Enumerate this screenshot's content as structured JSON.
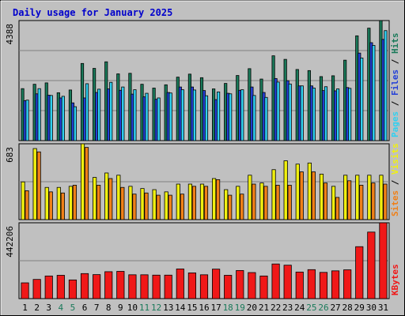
{
  "chart_data": {
    "type": "bar",
    "title": "Daily usage for January 2025",
    "days": [
      "1",
      "2",
      "3",
      "4",
      "5",
      "6",
      "7",
      "8",
      "9",
      "10",
      "11",
      "12",
      "13",
      "14",
      "15",
      "16",
      "17",
      "18",
      "19",
      "20",
      "21",
      "22",
      "23",
      "24",
      "25",
      "26",
      "27",
      "28",
      "29",
      "30",
      "31"
    ],
    "weekend_days": [
      "4",
      "5",
      "11",
      "12",
      "18",
      "19",
      "25",
      "26"
    ],
    "panels": [
      {
        "key": "hits",
        "ymax": 4388,
        "max_label": "4388",
        "labels": [
          "Pages",
          "Files",
          "Hits"
        ],
        "series": [
          {
            "name": "Hits",
            "color": "#1a7a5a",
            "values": [
              1900,
              2060,
              2110,
              1750,
              1850,
              2820,
              2640,
              2880,
              2440,
              2460,
              2060,
              1920,
              2040,
              2320,
              2430,
              2300,
              1890,
              2090,
              2380,
              2630,
              2250,
              3100,
              2970,
              2600,
              2560,
              2340,
              2370,
              2940,
              3830,
              4110,
              4388
            ]
          },
          {
            "name": "Files",
            "color": "#2440d8",
            "values": [
              1460,
              1710,
              1660,
              1560,
              1380,
              1560,
              1760,
              1890,
              1840,
              1700,
              1600,
              1510,
              1760,
              1960,
              1960,
              1830,
              1500,
              1730,
              1840,
              1960,
              1760,
              2270,
              2190,
              2000,
              2000,
              1830,
              1820,
              1940,
              3200,
              3580,
              3700
            ]
          },
          {
            "name": "Pages",
            "color": "#30d0f0",
            "values": [
              1480,
              1900,
              1650,
              1620,
              1240,
              2080,
              1880,
              2130,
              1960,
              1860,
              1730,
              1560,
              1740,
              1860,
              1850,
              1640,
              1780,
              1710,
              1860,
              1650,
              1580,
              2140,
              2070,
              2000,
              1920,
              1970,
              1890,
              1910,
              3020,
              3480,
              4020
            ]
          }
        ]
      },
      {
        "key": "visits",
        "ymax": 683,
        "max_label": "683",
        "labels": [
          "Sites",
          "Visits"
        ],
        "series": [
          {
            "name": "Visits",
            "color": "#f0f010",
            "values": [
              340,
              640,
              290,
              290,
              300,
              683,
              380,
              420,
              400,
              300,
              280,
              270,
              250,
              320,
              320,
              320,
              370,
              270,
              300,
              400,
              330,
              450,
              530,
              500,
              510,
              410,
              300,
              400,
              400,
              400,
              400
            ]
          },
          {
            "name": "Sites",
            "color": "#f08018",
            "values": [
              260,
              610,
              250,
              240,
              310,
              650,
              310,
              370,
              290,
              230,
              240,
              220,
              220,
              230,
              300,
              300,
              360,
              220,
              230,
              320,
              300,
              310,
              310,
              430,
              430,
              330,
              200,
              350,
              310,
              330,
              320
            ]
          }
        ]
      },
      {
        "key": "kbytes",
        "ymax": 442206,
        "max_label": "442206",
        "labels": [
          "KBytes"
        ],
        "series": [
          {
            "name": "KBytes",
            "color": "#f01818",
            "values": [
              92000,
              112000,
              132000,
              136000,
              109000,
              146000,
              140000,
              157000,
              159000,
              139000,
              139000,
              137000,
              137000,
              173000,
              150000,
              139000,
              172000,
              136000,
              164000,
              152000,
              132000,
              202000,
              195000,
              155000,
              169000,
              153000,
              162000,
              168000,
              303000,
              388000,
              442206
            ]
          }
        ]
      }
    ]
  }
}
